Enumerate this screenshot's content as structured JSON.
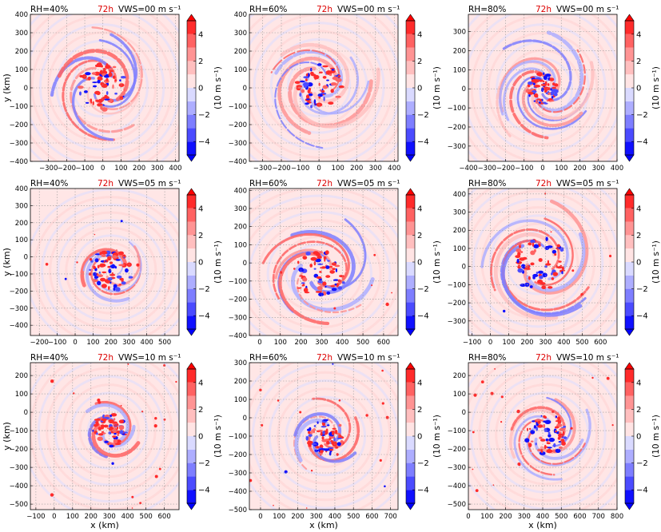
{
  "figure": {
    "xlabel": "x (km)",
    "ylabel": "y (km)",
    "time_label": "72h",
    "time_color": "#dd0000",
    "colorbar_label": "(10 m s⁻¹)"
  },
  "colormap": {
    "levels": [
      -5,
      -4,
      -3,
      -2,
      -1,
      0,
      1,
      2,
      3,
      4,
      5
    ],
    "tick_values": [
      -4,
      -2,
      0,
      2,
      4
    ],
    "tick_labels": [
      "−4",
      "−2",
      "0",
      "2",
      "4"
    ],
    "colors": [
      "#1010ff",
      "#4b4bff",
      "#7e7eff",
      "#aeaeff",
      "#dadaff",
      "#ffe4e4",
      "#ffbfbf",
      "#ff9494",
      "#ff6262",
      "#ff2b2b"
    ],
    "under_color": "#0000ff",
    "over_color": "#ff0000",
    "background_color": "#ffe6e6"
  },
  "chart_data": [
    {
      "type": "heatmap",
      "rh": "RH=40%",
      "vws": "VWS=00  m s⁻¹",
      "xlim": [
        -400,
        420
      ],
      "ylim": [
        -400,
        400
      ],
      "xticks": [
        -300,
        -200,
        -100,
        0,
        100,
        200,
        300,
        400
      ],
      "yticks": [
        -400,
        -300,
        -200,
        -100,
        0,
        100,
        200,
        300,
        400
      ],
      "xtick_labels": [
        "−300",
        "−200",
        "−100",
        "0",
        "100",
        "200",
        "300",
        "400"
      ],
      "ytick_labels": [
        "−400",
        "−300",
        "−200",
        "−100",
        "0",
        "100",
        "200",
        "300",
        "400"
      ],
      "center": [
        -5,
        5
      ],
      "core_radius": 130,
      "extent_radius": 330,
      "arms": 3
    },
    {
      "type": "heatmap",
      "rh": "RH=60%",
      "vws": "VWS=00  m s⁻¹",
      "xlim": [
        -370,
        420
      ],
      "ylim": [
        -400,
        400
      ],
      "xticks": [
        -300,
        -200,
        -100,
        0,
        100,
        200,
        300,
        400
      ],
      "yticks": [
        -400,
        -300,
        -200,
        -100,
        0,
        100,
        200,
        300,
        400
      ],
      "xtick_labels": [
        "−300",
        "−200",
        "−100",
        "0",
        "100",
        "200",
        "300",
        "400"
      ],
      "ytick_labels": [
        "−400",
        "−300",
        "−200",
        "−100",
        "0",
        "100",
        "200",
        "300",
        "400"
      ],
      "center": [
        0,
        10
      ],
      "core_radius": 120,
      "extent_radius": 340,
      "arms": 3
    },
    {
      "type": "heatmap",
      "rh": "RH=80%",
      "vws": "VWS=00  m s⁻¹",
      "xlim": [
        -400,
        400
      ],
      "ylim": [
        -380,
        390
      ],
      "xticks": [
        -400,
        -300,
        -200,
        -100,
        0,
        100,
        200,
        300,
        400
      ],
      "yticks": [
        -300,
        -200,
        -100,
        0,
        100,
        200,
        300
      ],
      "xtick_labels": [
        "−400",
        "−300",
        "−200",
        "−100",
        "0",
        "100",
        "200",
        "300",
        "400"
      ],
      "ytick_labels": [
        "−300",
        "−200",
        "−100",
        "0",
        "100",
        "200",
        "300"
      ],
      "center": [
        0,
        0
      ],
      "core_radius": 80,
      "extent_radius": 320,
      "arms": 4
    },
    {
      "type": "heatmap",
      "rh": "RH=40%",
      "vws": "VWS=05  m s⁻¹",
      "xlim": [
        -250,
        580
      ],
      "ylim": [
        -460,
        400
      ],
      "xticks": [
        -200,
        -100,
        0,
        100,
        200,
        300,
        400,
        500
      ],
      "yticks": [
        -400,
        -300,
        -200,
        -100,
        0,
        100,
        200,
        300,
        400
      ],
      "xtick_labels": [
        "−200",
        "−100",
        "0",
        "100",
        "200",
        "300",
        "400",
        "500"
      ],
      "ytick_labels": [
        "−400",
        "−300",
        "−200",
        "−100",
        "0",
        "100",
        "200",
        "300",
        "400"
      ],
      "center": [
        200,
        -80
      ],
      "core_radius": 120,
      "extent_radius": 200,
      "arms": 2
    },
    {
      "type": "heatmap",
      "rh": "RH=60%",
      "vws": "VWS=05  m s⁻¹",
      "xlim": [
        -50,
        670
      ],
      "ylim": [
        -400,
        410
      ],
      "xticks": [
        0,
        100,
        200,
        300,
        400,
        500,
        600
      ],
      "yticks": [
        -400,
        -300,
        -200,
        -100,
        0,
        100,
        200,
        300,
        400
      ],
      "xtick_labels": [
        "0",
        "100",
        "200",
        "300",
        "400",
        "500",
        "600"
      ],
      "ytick_labels": [
        "−400",
        "−300",
        "−200",
        "−100",
        "0",
        "100",
        "200",
        "300",
        "400"
      ],
      "center": [
        290,
        -60
      ],
      "core_radius": 130,
      "extent_radius": 330,
      "arms": 3
    },
    {
      "type": "heatmap",
      "rh": "RH=80%",
      "vws": "VWS=05  m s⁻¹",
      "xlim": [
        -120,
        690
      ],
      "ylim": [
        -380,
        430
      ],
      "xticks": [
        -100,
        0,
        100,
        200,
        300,
        400,
        500,
        600
      ],
      "yticks": [
        -300,
        -200,
        -100,
        0,
        100,
        200,
        300,
        400
      ],
      "xtick_labels": [
        "−100",
        "0",
        "100",
        "200",
        "300",
        "400",
        "500",
        "600"
      ],
      "ytick_labels": [
        "−300",
        "−200",
        "−100",
        "0",
        "100",
        "200",
        "300",
        "400"
      ],
      "center": [
        260,
        20
      ],
      "core_radius": 150,
      "extent_radius": 360,
      "arms": 3
    },
    {
      "type": "heatmap",
      "rh": "RH=40%",
      "vws": "VWS=10  m s⁻¹",
      "xlim": [
        -130,
        680
      ],
      "ylim": [
        -530,
        270
      ],
      "xticks": [
        -100,
        0,
        100,
        200,
        300,
        400,
        500,
        600
      ],
      "yticks": [
        -500,
        -400,
        -300,
        -200,
        -100,
        0,
        100,
        200
      ],
      "xtick_labels": [
        "−100",
        "0",
        "100",
        "200",
        "300",
        "400",
        "500",
        "600"
      ],
      "ytick_labels": [
        "−500",
        "−400",
        "−300",
        "−200",
        "−100",
        "0",
        "100",
        "200"
      ],
      "center": [
        300,
        -100
      ],
      "core_radius": 90,
      "extent_radius": 200,
      "arms": 2
    },
    {
      "type": "heatmap",
      "rh": "RH=60%",
      "vws": "VWS=10  m s⁻¹",
      "xlim": [
        -60,
        740
      ],
      "ylim": [
        -500,
        300
      ],
      "xticks": [
        0,
        100,
        200,
        300,
        400,
        500,
        600,
        700
      ],
      "yticks": [
        -500,
        -400,
        -300,
        -200,
        -100,
        0,
        100,
        200,
        300
      ],
      "xtick_labels": [
        "0",
        "100",
        "200",
        "300",
        "400",
        "500",
        "600",
        "700"
      ],
      "ytick_labels": [
        "−500",
        "−400",
        "−300",
        "−200",
        "−100",
        "0",
        "100",
        "200",
        "300"
      ],
      "center": [
        350,
        -100
      ],
      "core_radius": 100,
      "extent_radius": 220,
      "arms": 2
    },
    {
      "type": "heatmap",
      "rh": "RH=80%",
      "vws": "VWS=10  m s⁻¹",
      "xlim": [
        0,
        800
      ],
      "ylim": [
        -530,
        270
      ],
      "xticks": [
        0,
        100,
        200,
        300,
        400,
        500,
        600,
        700,
        800
      ],
      "yticks": [
        -500,
        -400,
        -300,
        -200,
        -100,
        0,
        100,
        200
      ],
      "xtick_labels": [
        "0",
        "100",
        "200",
        "300",
        "400",
        "500",
        "600",
        "700",
        "800"
      ],
      "ytick_labels": [
        "−500",
        "−400",
        "−300",
        "−200",
        "−100",
        "0",
        "100",
        "200"
      ],
      "center": [
        420,
        -120
      ],
      "core_radius": 110,
      "extent_radius": 260,
      "arms": 3
    }
  ]
}
